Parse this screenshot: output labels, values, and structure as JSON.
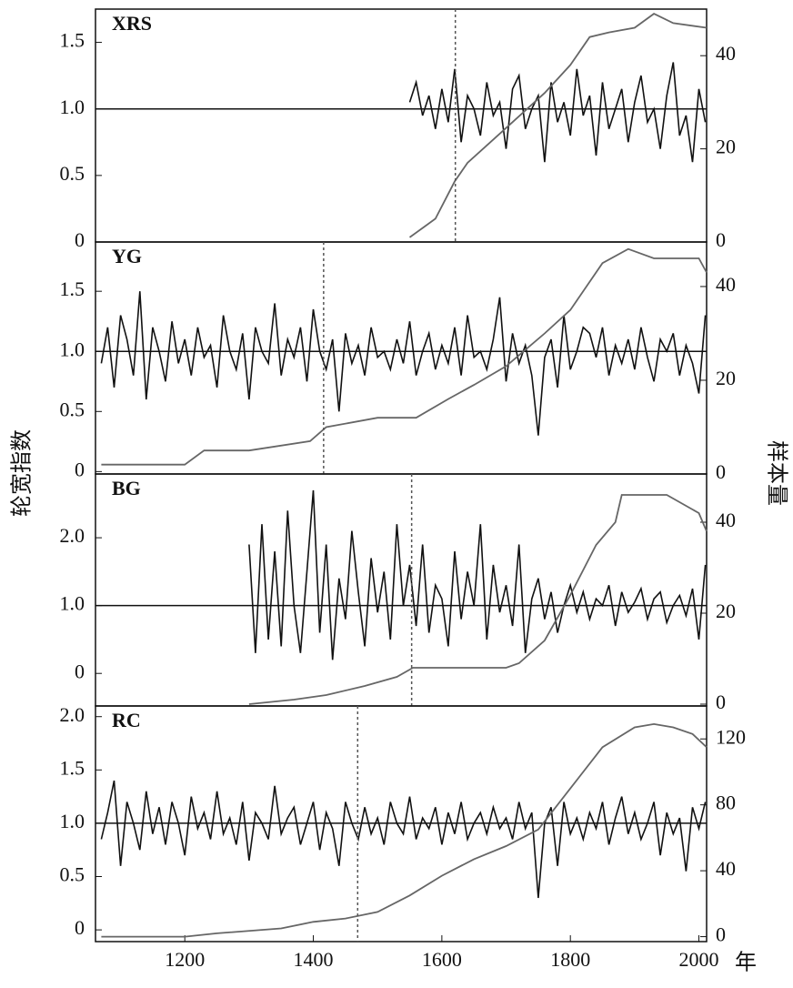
{
  "y_label": "轮宽指数",
  "y2_label": "样本量",
  "x_label": "年",
  "chart_data": [
    {
      "type": "line",
      "title": "XRS",
      "xlim": [
        1061,
        2012
      ],
      "ylim": [
        0,
        1.75
      ],
      "yticks": [
        0,
        0.5,
        {
          "value": 1,
          "label": "1.0"
        },
        1.5
      ],
      "y2lim": [
        0,
        50
      ],
      "y2ticks": [
        0,
        20,
        40
      ],
      "ref_line": 1,
      "dashed_line_x": 1621,
      "series": [
        {
          "color": "#111111",
          "x": [
            1550,
            1560,
            1570,
            1580,
            1590,
            1600,
            1610,
            1620,
            1630,
            1640,
            1650,
            1660,
            1670,
            1680,
            1690,
            1700,
            1710,
            1720,
            1730,
            1740,
            1750,
            1760,
            1770,
            1780,
            1790,
            1800,
            1810,
            1820,
            1830,
            1840,
            1850,
            1860,
            1870,
            1880,
            1890,
            1900,
            1910,
            1920,
            1930,
            1940,
            1950,
            1960,
            1970,
            1980,
            1990,
            2000,
            2010
          ],
          "values": [
            1.05,
            1.2,
            0.95,
            1.1,
            0.85,
            1.15,
            0.9,
            1.3,
            0.75,
            1.1,
            1.0,
            0.8,
            1.2,
            0.95,
            1.05,
            0.7,
            1.15,
            1.25,
            0.85,
            1.0,
            1.1,
            0.6,
            1.2,
            0.9,
            1.05,
            0.8,
            1.3,
            0.95,
            1.1,
            0.65,
            1.2,
            0.85,
            1.0,
            1.15,
            0.75,
            1.05,
            1.25,
            0.9,
            1.0,
            0.7,
            1.1,
            1.35,
            0.8,
            0.95,
            0.6,
            1.15,
            0.9
          ]
        },
        {
          "color": "#666666",
          "axis": "y2",
          "x": [
            1550,
            1570,
            1590,
            1620,
            1640,
            1680,
            1720,
            1760,
            1800,
            1830,
            1860,
            1900,
            1930,
            1960,
            2012
          ],
          "values": [
            1,
            3,
            5,
            13,
            17,
            22,
            27,
            32,
            38,
            44,
            45,
            46,
            49,
            47,
            46
          ]
        }
      ]
    },
    {
      "type": "line",
      "title": "YG",
      "xlim": [
        1061,
        2012
      ],
      "ylim": [
        -0.02,
        1.91
      ],
      "yticks": [
        0,
        0.5,
        {
          "value": 1,
          "label": "1.0"
        },
        1.5
      ],
      "y2lim": [
        0,
        49.5
      ],
      "y2ticks": [
        0,
        20,
        40
      ],
      "ref_line": 1,
      "dashed_line_x": 1416,
      "series": [
        {
          "color": "#111111",
          "x": [
            1070,
            1080,
            1090,
            1100,
            1110,
            1120,
            1130,
            1140,
            1150,
            1160,
            1170,
            1180,
            1190,
            1200,
            1210,
            1220,
            1230,
            1240,
            1250,
            1260,
            1270,
            1280,
            1290,
            1300,
            1310,
            1320,
            1330,
            1340,
            1350,
            1360,
            1370,
            1380,
            1390,
            1400,
            1410,
            1420,
            1430,
            1440,
            1450,
            1460,
            1470,
            1480,
            1490,
            1500,
            1510,
            1520,
            1530,
            1540,
            1550,
            1560,
            1570,
            1580,
            1590,
            1600,
            1610,
            1620,
            1630,
            1640,
            1650,
            1660,
            1670,
            1680,
            1690,
            1700,
            1710,
            1720,
            1730,
            1740,
            1750,
            1760,
            1770,
            1780,
            1790,
            1800,
            1810,
            1820,
            1830,
            1840,
            1850,
            1860,
            1870,
            1880,
            1890,
            1900,
            1910,
            1920,
            1930,
            1940,
            1950,
            1960,
            1970,
            1980,
            1990,
            2000,
            2010
          ],
          "values": [
            0.9,
            1.2,
            0.7,
            1.3,
            1.1,
            0.8,
            1.5,
            0.6,
            1.2,
            1.0,
            0.75,
            1.25,
            0.9,
            1.1,
            0.8,
            1.2,
            0.95,
            1.05,
            0.7,
            1.3,
            1.0,
            0.85,
            1.15,
            0.6,
            1.2,
            1.0,
            0.9,
            1.4,
            0.8,
            1.1,
            0.95,
            1.2,
            0.75,
            1.35,
            1.0,
            0.85,
            1.1,
            0.5,
            1.15,
            0.9,
            1.05,
            0.8,
            1.2,
            0.95,
            1.0,
            0.85,
            1.1,
            0.9,
            1.25,
            0.8,
            1.0,
            1.15,
            0.85,
            1.05,
            0.9,
            1.2,
            0.8,
            1.3,
            0.95,
            1.0,
            0.85,
            1.1,
            1.45,
            0.75,
            1.15,
            0.9,
            1.05,
            0.8,
            0.3,
            0.95,
            1.1,
            0.7,
            1.3,
            0.85,
            1.0,
            1.2,
            1.15,
            0.95,
            1.2,
            0.8,
            1.05,
            0.9,
            1.1,
            0.85,
            1.2,
            0.95,
            0.75,
            1.1,
            1.0,
            1.15,
            0.8,
            1.05,
            0.9,
            0.65,
            1.3
          ]
        },
        {
          "color": "#666666",
          "axis": "y2",
          "x": [
            1070,
            1200,
            1230,
            1300,
            1395,
            1420,
            1500,
            1560,
            1610,
            1650,
            1700,
            1760,
            1800,
            1850,
            1890,
            1930,
            2000,
            2012
          ],
          "values": [
            2,
            2,
            5,
            5,
            7,
            10,
            12,
            12,
            16,
            19,
            23,
            30,
            35,
            45,
            48,
            46,
            46,
            43
          ]
        }
      ]
    },
    {
      "type": "line",
      "title": "BG",
      "xlim": [
        1061,
        2012
      ],
      "ylim": [
        -0.48,
        2.94
      ],
      "yticks": [
        0,
        {
          "value": 1,
          "label": "1.0"
        },
        {
          "value": 2,
          "label": "2.0"
        }
      ],
      "y2lim": [
        -0.4,
        50.6
      ],
      "y2ticks": [
        0,
        20,
        40
      ],
      "ref_line": 1,
      "dashed_line_x": 1553,
      "series": [
        {
          "color": "#111111",
          "x": [
            1300,
            1310,
            1320,
            1330,
            1340,
            1350,
            1360,
            1370,
            1380,
            1390,
            1400,
            1410,
            1420,
            1430,
            1440,
            1450,
            1460,
            1470,
            1480,
            1490,
            1500,
            1510,
            1520,
            1530,
            1540,
            1550,
            1560,
            1570,
            1580,
            1590,
            1600,
            1610,
            1620,
            1630,
            1640,
            1650,
            1660,
            1670,
            1680,
            1690,
            1700,
            1710,
            1720,
            1730,
            1740,
            1750,
            1760,
            1770,
            1780,
            1790,
            1800,
            1810,
            1820,
            1830,
            1840,
            1850,
            1860,
            1870,
            1880,
            1890,
            1900,
            1910,
            1920,
            1930,
            1940,
            1950,
            1960,
            1970,
            1980,
            1990,
            2000,
            2010
          ],
          "values": [
            1.9,
            0.3,
            2.2,
            0.5,
            1.8,
            0.4,
            2.4,
            1.0,
            0.3,
            1.5,
            2.7,
            0.6,
            1.9,
            0.2,
            1.4,
            0.8,
            2.1,
            1.2,
            0.4,
            1.7,
            0.9,
            1.5,
            0.5,
            2.2,
            1.0,
            1.6,
            0.7,
            1.9,
            0.6,
            1.3,
            1.1,
            0.4,
            1.8,
            0.8,
            1.5,
            1.0,
            2.2,
            0.5,
            1.6,
            0.9,
            1.3,
            0.7,
            1.9,
            0.3,
            1.1,
            1.4,
            0.8,
            1.2,
            0.6,
            1.0,
            1.3,
            0.9,
            1.2,
            0.8,
            1.1,
            1.0,
            1.3,
            0.7,
            1.2,
            0.9,
            1.05,
            1.25,
            0.8,
            1.1,
            1.2,
            0.75,
            1.0,
            1.15,
            0.85,
            1.25,
            0.5,
            1.6
          ]
        },
        {
          "color": "#666666",
          "axis": "y2",
          "x": [
            1300,
            1370,
            1420,
            1480,
            1530,
            1555,
            1700,
            1720,
            1760,
            1800,
            1840,
            1870,
            1880,
            1950,
            2000,
            2012
          ],
          "values": [
            0,
            1,
            2,
            4,
            6,
            8,
            8,
            9,
            14,
            24,
            35,
            40,
            46,
            46,
            42,
            38
          ]
        }
      ]
    },
    {
      "type": "line",
      "title": "RC",
      "xlim": [
        1061,
        2012
      ],
      "ylim": [
        -0.11,
        2.1
      ],
      "yticks": [
        0,
        0.5,
        {
          "value": 1,
          "label": "1.0"
        },
        1.5,
        {
          "value": 2,
          "label": "2.0"
        }
      ],
      "y2lim": [
        -3,
        140
      ],
      "y2ticks": [
        0,
        40,
        80,
        120
      ],
      "ref_line": 1,
      "dashed_line_x": 1469,
      "xticks": [
        1200,
        1400,
        1600,
        1800,
        2000
      ],
      "series": [
        {
          "color": "#111111",
          "x": [
            1070,
            1080,
            1090,
            1100,
            1110,
            1120,
            1130,
            1140,
            1150,
            1160,
            1170,
            1180,
            1190,
            1200,
            1210,
            1220,
            1230,
            1240,
            1250,
            1260,
            1270,
            1280,
            1290,
            1300,
            1310,
            1320,
            1330,
            1340,
            1350,
            1360,
            1370,
            1380,
            1390,
            1400,
            1410,
            1420,
            1430,
            1440,
            1450,
            1460,
            1470,
            1480,
            1490,
            1500,
            1510,
            1520,
            1530,
            1540,
            1550,
            1560,
            1570,
            1580,
            1590,
            1600,
            1610,
            1620,
            1630,
            1640,
            1650,
            1660,
            1670,
            1680,
            1690,
            1700,
            1710,
            1720,
            1730,
            1740,
            1750,
            1760,
            1770,
            1780,
            1790,
            1800,
            1810,
            1820,
            1830,
            1840,
            1850,
            1860,
            1870,
            1880,
            1890,
            1900,
            1910,
            1920,
            1930,
            1940,
            1950,
            1960,
            1970,
            1980,
            1990,
            2000,
            2010
          ],
          "values": [
            0.85,
            1.1,
            1.4,
            0.6,
            1.2,
            1.0,
            0.75,
            1.3,
            0.9,
            1.15,
            0.8,
            1.2,
            1.0,
            0.7,
            1.25,
            0.95,
            1.1,
            0.85,
            1.3,
            0.9,
            1.05,
            0.8,
            1.2,
            0.65,
            1.1,
            1.0,
            0.85,
            1.35,
            0.9,
            1.05,
            1.15,
            0.8,
            1.0,
            1.2,
            0.75,
            1.1,
            0.95,
            0.6,
            1.2,
            1.0,
            0.85,
            1.15,
            0.9,
            1.05,
            0.8,
            1.2,
            1.0,
            0.9,
            1.25,
            0.85,
            1.05,
            0.95,
            1.15,
            0.8,
            1.1,
            0.9,
            1.2,
            0.85,
            1.0,
            1.1,
            0.9,
            1.15,
            0.95,
            1.05,
            0.85,
            1.2,
            0.95,
            1.1,
            0.3,
            1.0,
            1.15,
            0.6,
            1.2,
            0.9,
            1.05,
            0.85,
            1.1,
            0.95,
            1.2,
            0.8,
            1.05,
            1.25,
            0.9,
            1.1,
            0.85,
            1.0,
            1.2,
            0.7,
            1.1,
            0.9,
            1.05,
            0.55,
            1.15,
            0.95,
            1.2
          ]
        },
        {
          "color": "#666666",
          "axis": "y2",
          "x": [
            1070,
            1200,
            1250,
            1350,
            1400,
            1450,
            1500,
            1550,
            1600,
            1650,
            1700,
            1750,
            1800,
            1850,
            1900,
            1930,
            1960,
            1990,
            2012
          ],
          "values": [
            0,
            0,
            2,
            5,
            9,
            11,
            15,
            25,
            37,
            47,
            55,
            65,
            90,
            115,
            127,
            129,
            127,
            123,
            115
          ]
        }
      ]
    }
  ]
}
